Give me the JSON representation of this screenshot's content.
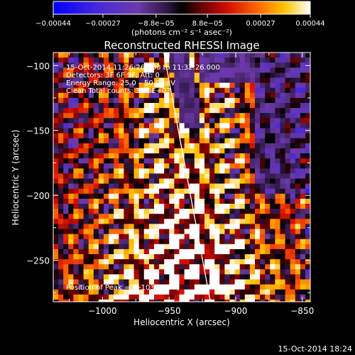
{
  "chart_data": {
    "type": "heatmap",
    "title": "Reconstructed RHESSI Image",
    "xlabel": "Heliocentric X (arcsec)",
    "ylabel": "Heliocentric Y (arcsec)",
    "xlim": [
      -1037,
      -844
    ],
    "ylim": [
      -282,
      -90
    ],
    "x_ticks": [
      -1000,
      -950,
      -900,
      -850
    ],
    "x_tick_labels": [
      "−1000",
      "−950",
      "−900",
      "−850"
    ],
    "y_ticks": [
      -100,
      -150,
      -200,
      -250
    ],
    "y_tick_labels": [
      "−100",
      "−150",
      "−200",
      "−250"
    ],
    "colorbar": {
      "tick_values": [
        -0.00044,
        -0.00027,
        -8.8e-05,
        8.8e-05,
        0.00027,
        0.00044
      ],
      "tick_labels": [
        "−0.00044",
        "−0.00027",
        "−8.8e−05",
        "8.8e−05",
        "0.00027",
        "0.00044"
      ],
      "units_label": "(photons cm⁻² s⁻¹ asec⁻²)",
      "range": [
        -0.00044,
        0.00044
      ]
    },
    "annotations": [
      "15-Oct-2014 11:26:26.000 to 11:32:26.000",
      "Detectors: 3F 6F 9F, Att: 0",
      "Energy Range: 25.0 – 50.0 keV",
      "Clean    Total counts: 3.85E+03"
    ],
    "peak_label": "Position of Peak = [−1033,−97]",
    "peak_position": [
      -1033,
      -97
    ],
    "limb_line": {
      "x": [
        -954,
        -919
      ],
      "y": [
        -90,
        -282
      ]
    }
  },
  "footer": {
    "timestamp": "15-Oct-2014 18:24"
  },
  "colors": {
    "background": "#000000",
    "limb": "#ffffff",
    "colormap": [
      "#0000ff",
      "#5a28c8",
      "#6a3aa0",
      "#3a1f55",
      "#000000",
      "#8a0000",
      "#ff2a00",
      "#ff9800",
      "#fff200",
      "#ffffff"
    ]
  }
}
